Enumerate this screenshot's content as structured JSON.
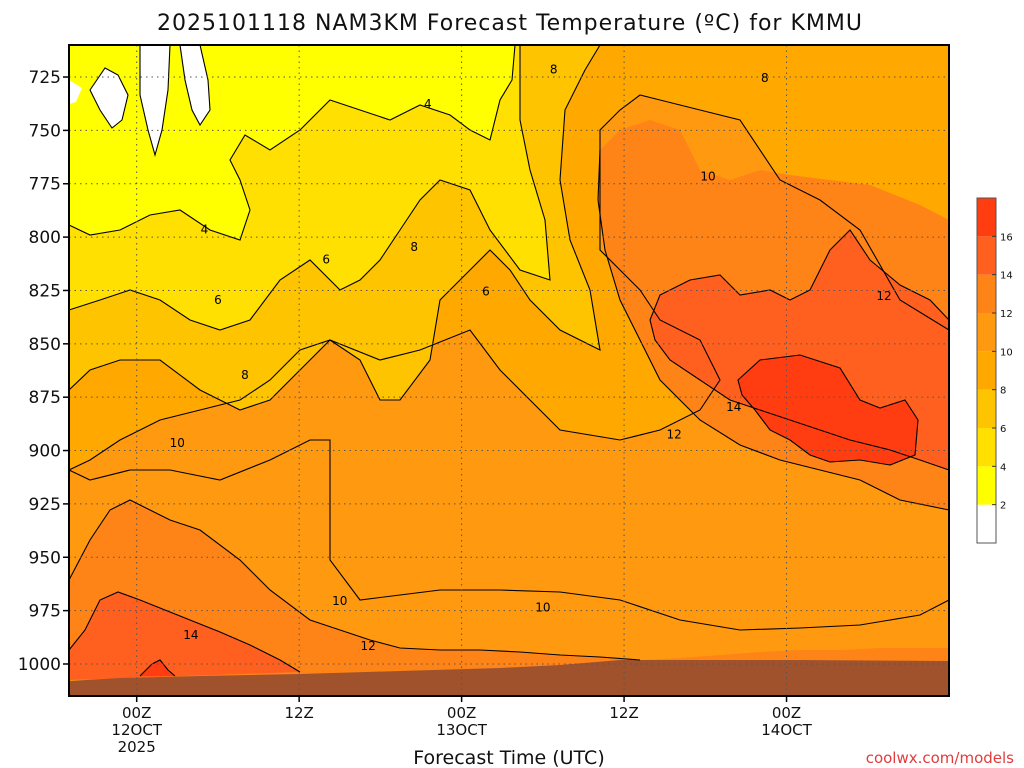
{
  "chart_data": {
    "type": "heatmap",
    "title": "2025101118 NAM3KM Forecast Temperature (ºC) for KMMU",
    "xlabel": "Forecast Time (UTC)",
    "ylabel": "",
    "y_ticks": [
      725,
      750,
      775,
      800,
      825,
      850,
      875,
      900,
      925,
      950,
      975,
      1000
    ],
    "y_range_hpa": [
      710,
      1015
    ],
    "x_range_hours": [
      -5,
      60
    ],
    "x_ticks": [
      {
        "hour": 0,
        "lines": [
          "00Z",
          "12OCT",
          "2025"
        ]
      },
      {
        "hour": 12,
        "lines": [
          "12Z"
        ]
      },
      {
        "hour": 24,
        "lines": [
          "00Z",
          "13OCT"
        ]
      },
      {
        "hour": 36,
        "lines": [
          "12Z"
        ]
      },
      {
        "hour": 48,
        "lines": [
          "00Z",
          "14OCT"
        ]
      }
    ],
    "contour_levels": [
      2,
      4,
      6,
      8,
      10,
      12,
      14,
      16
    ],
    "contour_labels": [
      {
        "text": "4",
        "hour": 5.0,
        "hpa": 797
      },
      {
        "text": "4",
        "hour": 21.5,
        "hpa": 738
      },
      {
        "text": "6",
        "hour": 6.0,
        "hpa": 830
      },
      {
        "text": "6",
        "hour": 14.0,
        "hpa": 811
      },
      {
        "text": "6",
        "hour": 25.8,
        "hpa": 826
      },
      {
        "text": "8",
        "hour": 8.0,
        "hpa": 865
      },
      {
        "text": "8",
        "hour": 20.5,
        "hpa": 805
      },
      {
        "text": "8",
        "hour": 30.8,
        "hpa": 722
      },
      {
        "text": "8",
        "hour": 46.4,
        "hpa": 726
      },
      {
        "text": "10",
        "hour": 3.0,
        "hpa": 897
      },
      {
        "text": "10",
        "hour": 15.0,
        "hpa": 971
      },
      {
        "text": "10",
        "hour": 30.0,
        "hpa": 974
      },
      {
        "text": "10",
        "hour": 42.2,
        "hpa": 772
      },
      {
        "text": "12",
        "hour": 17.1,
        "hpa": 992
      },
      {
        "text": "12",
        "hour": 39.7,
        "hpa": 893
      },
      {
        "text": "12",
        "hour": 55.2,
        "hpa": 828
      },
      {
        "text": "14",
        "hour": 4.0,
        "hpa": 987
      },
      {
        "text": "14",
        "hour": 44.1,
        "hpa": 880
      }
    ],
    "colorbar": {
      "ticks": [
        2,
        4,
        6,
        8,
        10,
        12,
        14,
        16
      ],
      "bins": [
        {
          "from": 0,
          "to": 2,
          "color": "#ffffff"
        },
        {
          "from": 2,
          "to": 4,
          "color": "#ffff00"
        },
        {
          "from": 4,
          "to": 6,
          "color": "#ffe000"
        },
        {
          "from": 6,
          "to": 8,
          "color": "#ffc400"
        },
        {
          "from": 8,
          "to": 10,
          "color": "#ffa800"
        },
        {
          "from": 10,
          "to": 12,
          "color": "#ff9a10"
        },
        {
          "from": 12,
          "to": 14,
          "color": "#ff8418"
        },
        {
          "from": 14,
          "to": 16,
          "color": "#ff6020"
        },
        {
          "from": 16,
          "to": 18,
          "color": "#ff3d10"
        }
      ]
    },
    "terrain_color": "#a0522d",
    "grid": true
  },
  "credit": "coolwx.com/models"
}
